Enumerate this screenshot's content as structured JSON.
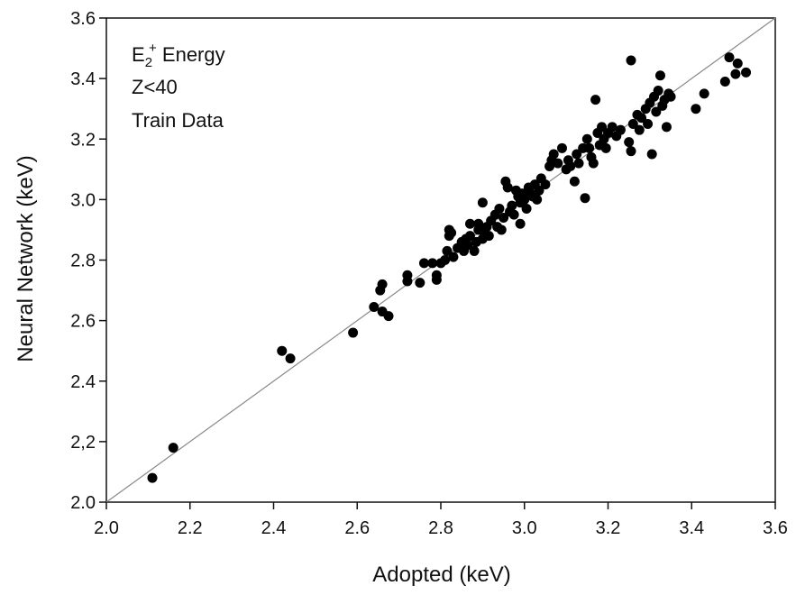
{
  "chart_data": {
    "type": "scatter",
    "xlabel": "Adopted (keV)",
    "ylabel": "Neural Network (keV)",
    "xlim": [
      2.0,
      3.6
    ],
    "ylim": [
      2.0,
      3.6
    ],
    "xticks": [
      "2.0",
      "2.2",
      "2.4",
      "2.6",
      "2.8",
      "3.0",
      "3.2",
      "3.4",
      "3.6"
    ],
    "yticks": [
      "2.0",
      "2,2",
      "2.4",
      "2.6",
      "2.8",
      "3.0",
      "3.2",
      "3.4",
      "3.6"
    ],
    "annotation": {
      "line1_base": "E",
      "line1_sub": "2",
      "line1_sup": "+",
      "line1_rest": " Energy",
      "line2": "Z<40",
      "line3": "Train Data"
    },
    "reference_line": "y = x",
    "grid": false,
    "marker_color": "#000000",
    "line_color": "#8a8a8a",
    "points": [
      [
        2.11,
        2.08
      ],
      [
        2.16,
        2.18
      ],
      [
        2.42,
        2.5
      ],
      [
        2.44,
        2.475
      ],
      [
        2.59,
        2.56
      ],
      [
        2.64,
        2.645
      ],
      [
        2.655,
        2.7
      ],
      [
        2.66,
        2.72
      ],
      [
        2.66,
        2.63
      ],
      [
        2.675,
        2.615
      ],
      [
        2.72,
        2.75
      ],
      [
        2.72,
        2.73
      ],
      [
        2.75,
        2.725
      ],
      [
        2.76,
        2.79
      ],
      [
        2.78,
        2.79
      ],
      [
        2.79,
        2.75
      ],
      [
        2.79,
        2.735
      ],
      [
        2.8,
        2.79
      ],
      [
        2.81,
        2.8
      ],
      [
        2.815,
        2.83
      ],
      [
        2.82,
        2.88
      ],
      [
        2.82,
        2.9
      ],
      [
        2.825,
        2.89
      ],
      [
        2.83,
        2.81
      ],
      [
        2.84,
        2.84
      ],
      [
        2.85,
        2.86
      ],
      [
        2.855,
        2.83
      ],
      [
        2.86,
        2.87
      ],
      [
        2.865,
        2.85
      ],
      [
        2.87,
        2.92
      ],
      [
        2.87,
        2.88
      ],
      [
        2.88,
        2.83
      ],
      [
        2.885,
        2.86
      ],
      [
        2.89,
        2.9
      ],
      [
        2.89,
        2.92
      ],
      [
        2.9,
        2.99
      ],
      [
        2.9,
        2.87
      ],
      [
        2.905,
        2.89
      ],
      [
        2.91,
        2.91
      ],
      [
        2.915,
        2.88
      ],
      [
        2.92,
        2.93
      ],
      [
        2.93,
        2.95
      ],
      [
        2.935,
        2.91
      ],
      [
        2.94,
        2.97
      ],
      [
        2.945,
        2.9
      ],
      [
        2.95,
        2.94
      ],
      [
        2.955,
        3.06
      ],
      [
        2.96,
        3.04
      ],
      [
        2.965,
        2.96
      ],
      [
        2.97,
        2.98
      ],
      [
        2.975,
        2.95
      ],
      [
        2.98,
        3.03
      ],
      [
        2.985,
        3.01
      ],
      [
        2.99,
        2.99
      ],
      [
        2.99,
        2.92
      ],
      [
        2.995,
        3.02
      ],
      [
        3.0,
        3.0
      ],
      [
        3.005,
        2.97
      ],
      [
        3.01,
        3.04
      ],
      [
        3.015,
        3.02
      ],
      [
        3.02,
        3.01
      ],
      [
        3.025,
        3.05
      ],
      [
        3.03,
        3.0
      ],
      [
        3.035,
        3.03
      ],
      [
        3.04,
        3.07
      ],
      [
        3.05,
        3.05
      ],
      [
        3.06,
        3.11
      ],
      [
        3.065,
        3.13
      ],
      [
        3.07,
        3.15
      ],
      [
        3.08,
        3.12
      ],
      [
        3.09,
        3.17
      ],
      [
        3.1,
        3.1
      ],
      [
        3.105,
        3.13
      ],
      [
        3.11,
        3.11
      ],
      [
        3.12,
        3.06
      ],
      [
        3.125,
        3.15
      ],
      [
        3.13,
        3.12
      ],
      [
        3.14,
        3.17
      ],
      [
        3.145,
        3.005
      ],
      [
        3.15,
        3.2
      ],
      [
        3.155,
        3.17
      ],
      [
        3.16,
        3.14
      ],
      [
        3.165,
        3.12
      ],
      [
        3.17,
        3.33
      ],
      [
        3.175,
        3.22
      ],
      [
        3.18,
        3.18
      ],
      [
        3.185,
        3.24
      ],
      [
        3.19,
        3.2
      ],
      [
        3.195,
        3.17
      ],
      [
        3.2,
        3.22
      ],
      [
        3.21,
        3.24
      ],
      [
        3.22,
        3.21
      ],
      [
        3.23,
        3.23
      ],
      [
        3.25,
        3.19
      ],
      [
        3.255,
        3.16
      ],
      [
        3.255,
        3.46
      ],
      [
        3.26,
        3.25
      ],
      [
        3.27,
        3.28
      ],
      [
        3.275,
        3.23
      ],
      [
        3.28,
        3.27
      ],
      [
        3.29,
        3.3
      ],
      [
        3.295,
        3.25
      ],
      [
        3.3,
        3.32
      ],
      [
        3.305,
        3.15
      ],
      [
        3.31,
        3.34
      ],
      [
        3.315,
        3.29
      ],
      [
        3.32,
        3.36
      ],
      [
        3.325,
        3.41
      ],
      [
        3.33,
        3.31
      ],
      [
        3.335,
        3.33
      ],
      [
        3.34,
        3.24
      ],
      [
        3.345,
        3.35
      ],
      [
        3.35,
        3.34
      ],
      [
        3.41,
        3.3
      ],
      [
        3.43,
        3.35
      ],
      [
        3.48,
        3.39
      ],
      [
        3.49,
        3.47
      ],
      [
        3.505,
        3.415
      ],
      [
        3.51,
        3.45
      ],
      [
        3.53,
        3.42
      ]
    ]
  }
}
